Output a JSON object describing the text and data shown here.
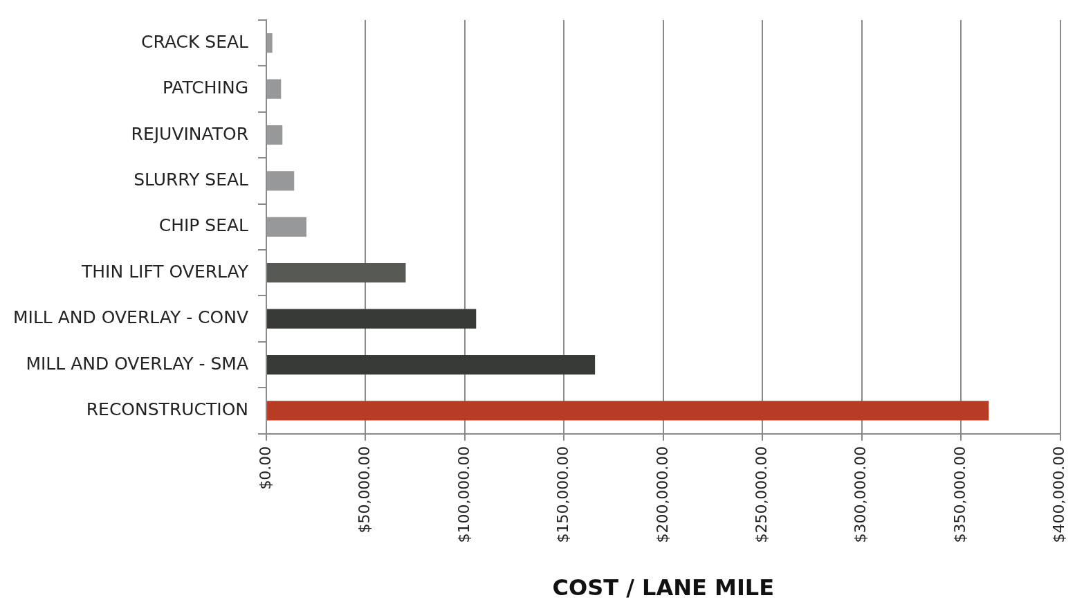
{
  "chart_data": {
    "type": "bar",
    "orientation": "horizontal",
    "xlabel": "COST / LANE MILE",
    "categories": [
      "CRACK SEAL",
      "PATCHING",
      "REJUVINATOR",
      "SLURRY SEAL",
      "CHIP SEAL",
      "THIN LIFT OVERLAY",
      "MILL AND OVERLAY - CONV",
      "MILL AND OVERLAY - SMA",
      "RECONSTRUCTION"
    ],
    "values": [
      3000,
      7400,
      8100,
      14000,
      20200,
      70200,
      105700,
      165600,
      364000
    ],
    "colors": [
      "#97989a",
      "#97989a",
      "#97989a",
      "#97989a",
      "#97989a",
      "#565953",
      "#383a37",
      "#383a37",
      "#b83c24"
    ],
    "xlim": [
      0,
      400000
    ],
    "xticks": [
      {
        "value": 0,
        "label": "$0.00"
      },
      {
        "value": 50000,
        "label": "$50,000.00"
      },
      {
        "value": 100000,
        "label": "$100,000.00"
      },
      {
        "value": 150000,
        "label": "$150,000.00"
      },
      {
        "value": 200000,
        "label": "$200,000.00"
      },
      {
        "value": 250000,
        "label": "$250,000.00"
      },
      {
        "value": 300000,
        "label": "$300,000.00"
      },
      {
        "value": 350000,
        "label": "$350,000.00"
      },
      {
        "value": 400000,
        "label": "$400,000.00"
      }
    ],
    "grid": "x",
    "legend": false
  }
}
